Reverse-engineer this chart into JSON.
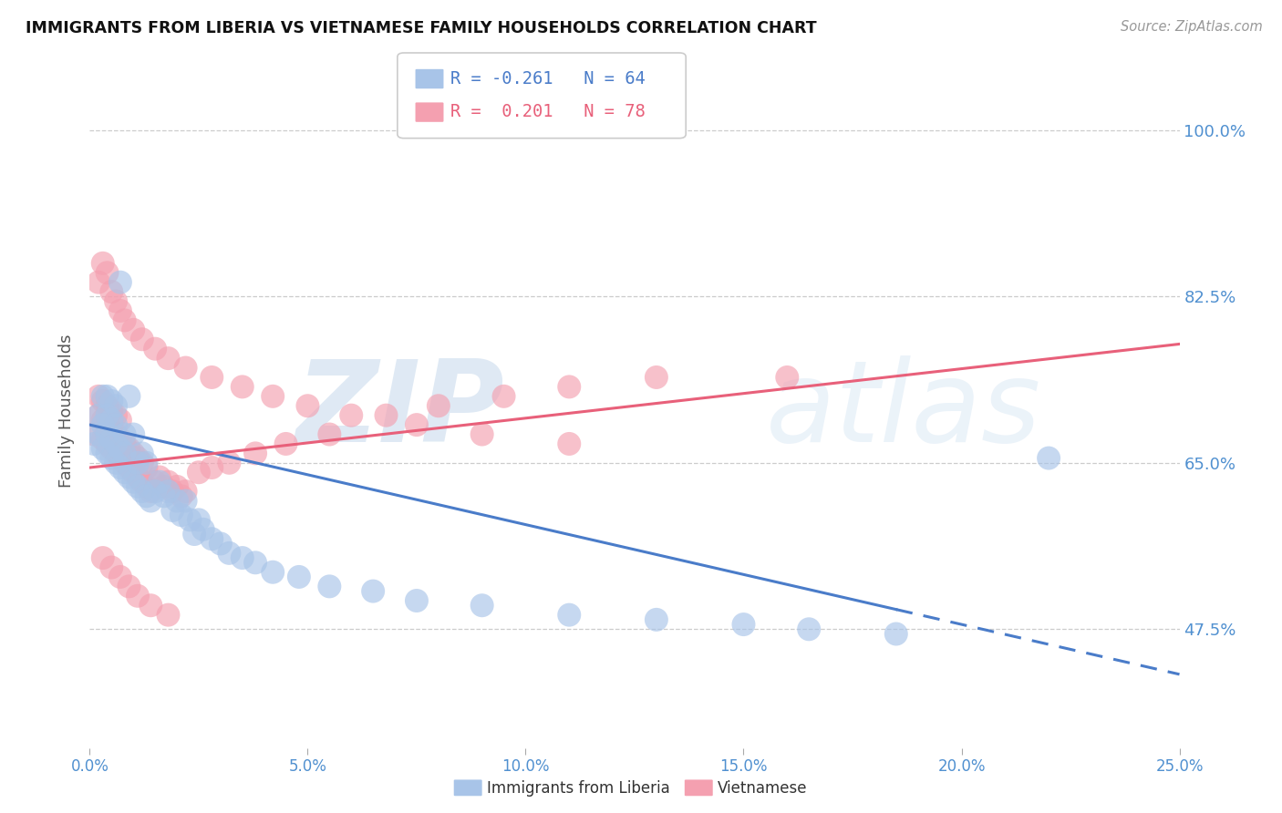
{
  "title": "IMMIGRANTS FROM LIBERIA VS VIETNAMESE FAMILY HOUSEHOLDS CORRELATION CHART",
  "source": "Source: ZipAtlas.com",
  "ylabel": "Family Households",
  "yticks": [
    0.475,
    0.65,
    0.825,
    1.0
  ],
  "ytick_labels": [
    "47.5%",
    "65.0%",
    "82.5%",
    "100.0%"
  ],
  "xticks": [
    0.0,
    0.05,
    0.1,
    0.15,
    0.2,
    0.25
  ],
  "xtick_labels": [
    "0.0%",
    "5.0%",
    "10.0%",
    "15.0%",
    "20.0%",
    "25.0%"
  ],
  "xmin": 0.0,
  "xmax": 0.25,
  "ymin": 0.35,
  "ymax": 1.06,
  "legend_line1": "R = -0.261   N = 64",
  "legend_line2": "R =  0.201   N = 78",
  "label1": "Immigrants from Liberia",
  "label2": "Vietnamese",
  "color_blue": "#a8c4e8",
  "color_pink": "#f4a0b0",
  "color_blue_line": "#4a7cc9",
  "color_pink_line": "#e8607a",
  "color_axis_labels": "#5090d0",
  "watermark_zip": "ZIP",
  "watermark_atlas": "atlas",
  "blue_scatter_x": [
    0.001,
    0.002,
    0.002,
    0.003,
    0.003,
    0.003,
    0.004,
    0.004,
    0.004,
    0.004,
    0.005,
    0.005,
    0.005,
    0.005,
    0.006,
    0.006,
    0.006,
    0.006,
    0.007,
    0.007,
    0.007,
    0.008,
    0.008,
    0.008,
    0.009,
    0.009,
    0.01,
    0.01,
    0.011,
    0.011,
    0.012,
    0.012,
    0.013,
    0.013,
    0.014,
    0.015,
    0.016,
    0.017,
    0.018,
    0.019,
    0.02,
    0.021,
    0.022,
    0.023,
    0.024,
    0.025,
    0.026,
    0.028,
    0.03,
    0.032,
    0.035,
    0.038,
    0.042,
    0.048,
    0.055,
    0.065,
    0.075,
    0.09,
    0.11,
    0.13,
    0.15,
    0.165,
    0.185,
    0.22
  ],
  "blue_scatter_y": [
    0.67,
    0.68,
    0.7,
    0.665,
    0.69,
    0.72,
    0.66,
    0.68,
    0.7,
    0.72,
    0.655,
    0.675,
    0.695,
    0.715,
    0.65,
    0.67,
    0.69,
    0.71,
    0.645,
    0.665,
    0.84,
    0.64,
    0.66,
    0.68,
    0.635,
    0.72,
    0.63,
    0.68,
    0.625,
    0.65,
    0.62,
    0.66,
    0.615,
    0.65,
    0.61,
    0.62,
    0.63,
    0.615,
    0.62,
    0.6,
    0.61,
    0.595,
    0.61,
    0.59,
    0.575,
    0.59,
    0.58,
    0.57,
    0.565,
    0.555,
    0.55,
    0.545,
    0.535,
    0.53,
    0.52,
    0.515,
    0.505,
    0.5,
    0.49,
    0.485,
    0.48,
    0.475,
    0.47,
    0.655
  ],
  "pink_scatter_x": [
    0.001,
    0.002,
    0.002,
    0.003,
    0.003,
    0.003,
    0.004,
    0.004,
    0.004,
    0.005,
    0.005,
    0.005,
    0.006,
    0.006,
    0.006,
    0.007,
    0.007,
    0.007,
    0.008,
    0.008,
    0.009,
    0.009,
    0.01,
    0.01,
    0.011,
    0.011,
    0.012,
    0.012,
    0.013,
    0.013,
    0.014,
    0.015,
    0.016,
    0.017,
    0.018,
    0.019,
    0.02,
    0.021,
    0.022,
    0.025,
    0.028,
    0.032,
    0.038,
    0.045,
    0.055,
    0.068,
    0.08,
    0.095,
    0.11,
    0.13,
    0.002,
    0.003,
    0.004,
    0.005,
    0.006,
    0.007,
    0.008,
    0.01,
    0.012,
    0.015,
    0.018,
    0.022,
    0.028,
    0.035,
    0.042,
    0.05,
    0.06,
    0.075,
    0.09,
    0.11,
    0.003,
    0.005,
    0.007,
    0.009,
    0.011,
    0.014,
    0.018,
    0.16
  ],
  "pink_scatter_y": [
    0.68,
    0.7,
    0.72,
    0.675,
    0.695,
    0.715,
    0.67,
    0.69,
    0.71,
    0.665,
    0.685,
    0.705,
    0.66,
    0.68,
    0.7,
    0.655,
    0.675,
    0.695,
    0.65,
    0.67,
    0.645,
    0.665,
    0.64,
    0.66,
    0.635,
    0.655,
    0.63,
    0.65,
    0.625,
    0.645,
    0.62,
    0.63,
    0.635,
    0.625,
    0.63,
    0.62,
    0.625,
    0.615,
    0.62,
    0.64,
    0.645,
    0.65,
    0.66,
    0.67,
    0.68,
    0.7,
    0.71,
    0.72,
    0.73,
    0.74,
    0.84,
    0.86,
    0.85,
    0.83,
    0.82,
    0.81,
    0.8,
    0.79,
    0.78,
    0.77,
    0.76,
    0.75,
    0.74,
    0.73,
    0.72,
    0.71,
    0.7,
    0.69,
    0.68,
    0.67,
    0.55,
    0.54,
    0.53,
    0.52,
    0.51,
    0.5,
    0.49,
    0.74
  ],
  "blue_line_x": [
    0.0,
    0.185
  ],
  "blue_line_y_intercept": 0.69,
  "blue_line_slope": -1.05,
  "pink_line_x": [
    0.0,
    0.25
  ],
  "pink_line_y_intercept": 0.645,
  "pink_line_slope": 0.52
}
